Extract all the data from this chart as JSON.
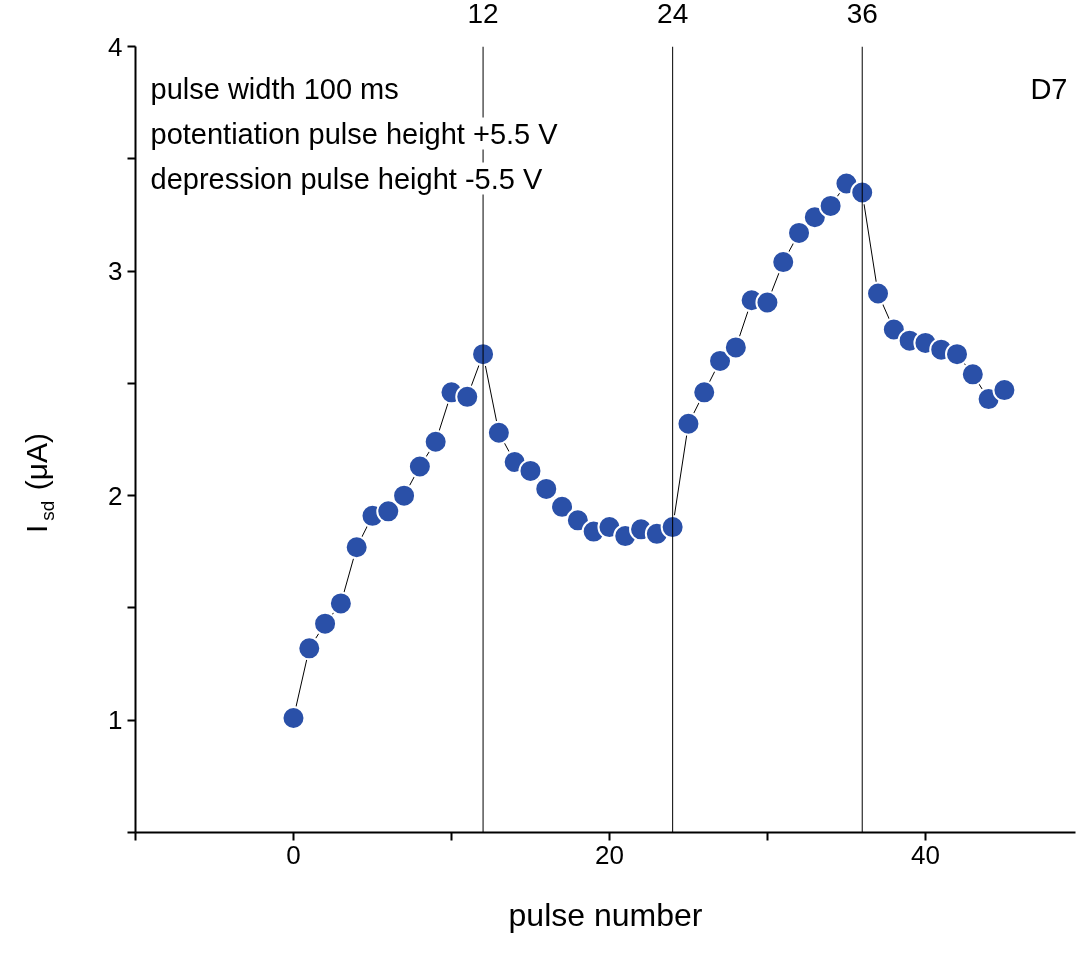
{
  "chart_data": {
    "type": "line",
    "xlabel": "pulse number",
    "ylabel": "I$_{sd}$ (μA)",
    "x": [
      0,
      1,
      2,
      3,
      4,
      5,
      6,
      7,
      8,
      9,
      10,
      11,
      12,
      13,
      14,
      15,
      16,
      17,
      18,
      19,
      20,
      21,
      22,
      23,
      24,
      25,
      26,
      27,
      28,
      29,
      30,
      31,
      32,
      33,
      34,
      35,
      36,
      37,
      38,
      39,
      40,
      41,
      42,
      43,
      44,
      45
    ],
    "series": [
      {
        "color": "#2a50a8",
        "values": [
          1.01,
          1.32,
          1.43,
          1.52,
          1.77,
          1.91,
          1.93,
          2.0,
          2.13,
          2.24,
          2.46,
          2.44,
          2.63,
          2.28,
          2.15,
          2.11,
          2.03,
          1.95,
          1.89,
          1.84,
          1.86,
          1.82,
          1.85,
          1.83,
          1.86,
          2.32,
          2.46,
          2.6,
          2.66,
          2.87,
          2.86,
          3.04,
          3.17,
          3.24,
          3.29,
          3.39,
          3.35,
          2.9,
          2.74,
          2.69,
          2.68,
          2.65,
          2.63,
          2.54,
          2.43,
          2.47
        ]
      }
    ],
    "xlim": [
      -10,
      49.5
    ],
    "ylim": [
      0.5,
      4
    ],
    "xticks": [
      {
        "value": -10,
        "label": null
      },
      0,
      {
        "value": 10,
        "label": null
      },
      20,
      {
        "value": 30,
        "label": null
      },
      40
    ],
    "yticks": [
      {
        "value": 0.5,
        "label": null
      },
      1,
      {
        "value": 1.5,
        "label": null
      },
      2,
      {
        "value": 2.5,
        "label": null
      },
      3,
      {
        "value": 3.5,
        "label": null
      },
      4
    ],
    "ref_lines": [
      {
        "axis": "x",
        "value": 12,
        "label": "12"
      },
      {
        "axis": "x",
        "value": 24,
        "label": "24"
      },
      {
        "axis": "x",
        "value": 36,
        "label": "36"
      }
    ],
    "annotations": [
      "pulse width 100 ms",
      "potentiation pulse height +5.5 V",
      "depression pulse height -5.5 V",
      "D7"
    ],
    "marker": "circle",
    "line_style": "solid",
    "grid": false
  }
}
